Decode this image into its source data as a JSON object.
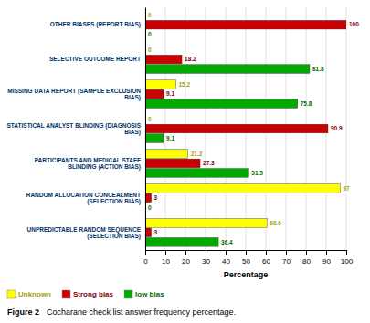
{
  "chart_data": {
    "type": "bar",
    "orientation": "horizontal",
    "categories": [
      "OTHER BIASES (REPORT BIAS)",
      "SELECTIVE OUTCOME REPORT",
      "MISSING DATA REPORT (SAMPLE EXCLUSION\nBIAS)",
      "STATISTICAL ANALYST BLINDING (DIAGNOSIS\nBIAS)",
      "PARTICIPANTS AND MEDICAL STAFF\nBLINDING (ACTION BIAS)",
      "RANDOM ALLOCATION CONCEALMENT\n(SELECTION BIAS)",
      "UNPREDICTABLE RANDOM SEQUENCE\n(SELECTION BIAS)"
    ],
    "series": [
      {
        "name": "Unknown",
        "color": "#FFFF00",
        "values": [
          0,
          0,
          15.2,
          0,
          21.2,
          97,
          60.6
        ]
      },
      {
        "name": "Strong bias",
        "color": "#CC0000",
        "values": [
          100,
          18.2,
          9.1,
          90.9,
          27.3,
          3,
          3
        ]
      },
      {
        "name": "low bias",
        "color": "#00AA00",
        "values": [
          0,
          81.8,
          75.8,
          9.1,
          51.5,
          0,
          36.4
        ]
      }
    ],
    "xlabel": "Percentage",
    "xlim": [
      0,
      100
    ],
    "xticks": [
      0,
      10,
      20,
      30,
      40,
      50,
      60,
      70,
      80,
      90,
      100
    ],
    "grid": true,
    "legend": "lower left",
    "data_labels": true,
    "annotations": [
      "Figure 2",
      "Cocharane check list answer frequency percentage."
    ]
  }
}
